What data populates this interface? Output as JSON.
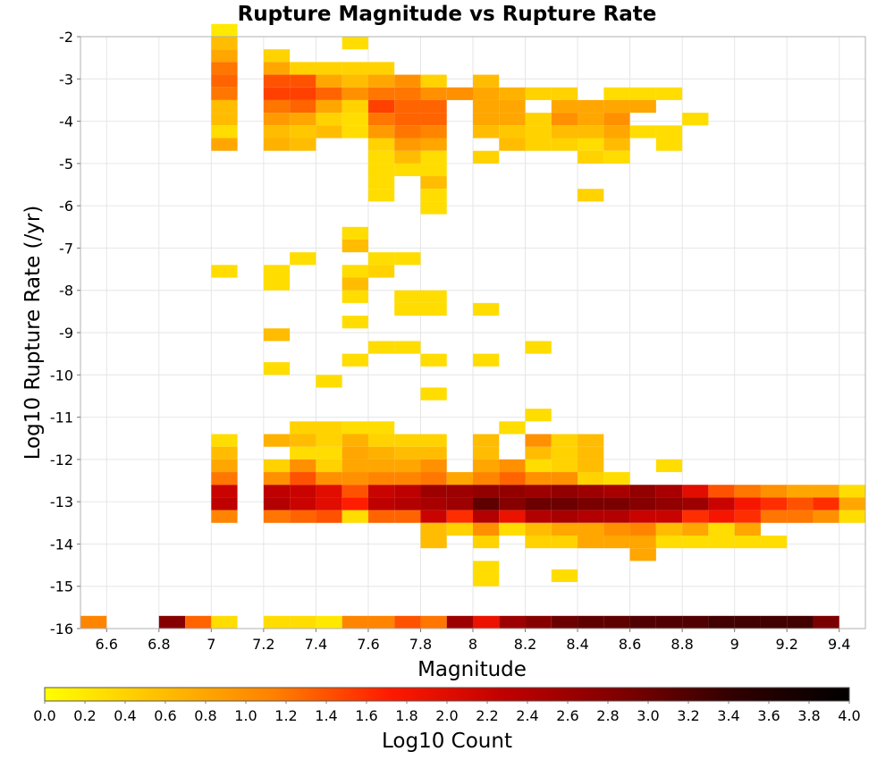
{
  "chart_data": {
    "type": "heatmap",
    "title": "Rupture Magnitude vs Rupture Rate",
    "xlabel": "Magnitude",
    "ylabel": "Log10 Rupture Rate (/yr)",
    "xlim": [
      6.5,
      9.5
    ],
    "ylim": [
      -16,
      -2
    ],
    "x_ticks": [
      "6.6",
      "6.8",
      "7",
      "7.2",
      "7.4",
      "7.6",
      "7.8",
      "8",
      "8.2",
      "8.4",
      "8.6",
      "8.8",
      "9",
      "9.2",
      "9.4"
    ],
    "y_ticks": [
      "-2",
      "-3",
      "-4",
      "-5",
      "-6",
      "-7",
      "-8",
      "-9",
      "-10",
      "-11",
      "-12",
      "-13",
      "-14",
      "-15",
      "-16"
    ],
    "grid": true,
    "cell_width": 0.1,
    "cell_height": 0.3,
    "colorbar": {
      "label": "Log10 Count",
      "range": [
        0,
        4
      ],
      "ticks": [
        "0.0",
        "0.2",
        "0.4",
        "0.6",
        "0.8",
        "1.0",
        "1.2",
        "1.4",
        "1.6",
        "1.8",
        "2.0",
        "2.2",
        "2.4",
        "2.6",
        "2.8",
        "3.0",
        "3.2",
        "3.4",
        "3.6",
        "3.8",
        "4.0"
      ],
      "colors": [
        "#ffff00",
        "#ffbf00",
        "#ff8000",
        "#ff1a00",
        "#c00000",
        "#800000",
        "#300000",
        "#000000"
      ],
      "placement": "bottom"
    },
    "cells": [
      [
        6.5,
        -16,
        1.1
      ],
      [
        6.8,
        -16,
        2.8
      ],
      [
        6.9,
        -16,
        1.3
      ],
      [
        7,
        -16,
        0.3
      ],
      [
        7.2,
        -16,
        0.3
      ],
      [
        7.3,
        -16,
        0.3
      ],
      [
        7.4,
        -16,
        0.2
      ],
      [
        7.5,
        -16,
        1.1
      ],
      [
        7.6,
        -16,
        1.1
      ],
      [
        7.7,
        -16,
        1.4
      ],
      [
        7.8,
        -16,
        1.2
      ],
      [
        7.9,
        -16,
        2.6
      ],
      [
        8,
        -16,
        1.9
      ],
      [
        8.1,
        -16,
        2.6
      ],
      [
        8.2,
        -16,
        2.8
      ],
      [
        8.3,
        -16,
        3.0
      ],
      [
        8.4,
        -16,
        3.1
      ],
      [
        8.5,
        -16,
        3.1
      ],
      [
        8.6,
        -16,
        3.2
      ],
      [
        8.7,
        -16,
        3.2
      ],
      [
        8.8,
        -16,
        3.2
      ],
      [
        8.9,
        -16,
        3.3
      ],
      [
        9,
        -16,
        3.3
      ],
      [
        9.1,
        -16,
        3.3
      ],
      [
        9.2,
        -16,
        3.3
      ],
      [
        9.3,
        -16,
        2.9
      ],
      [
        7,
        -2,
        0.2
      ],
      [
        7,
        -2.3,
        0.6
      ],
      [
        7,
        -2.6,
        0.8
      ],
      [
        7,
        -2.9,
        1.2
      ],
      [
        7,
        -3.2,
        1.3
      ],
      [
        7,
        -3.5,
        1.2
      ],
      [
        7,
        -3.8,
        0.6
      ],
      [
        7,
        -4.1,
        0.6
      ],
      [
        7,
        -4.4,
        0.3
      ],
      [
        7,
        -4.7,
        0.8
      ],
      [
        7.2,
        -2.6,
        0.4
      ],
      [
        7.2,
        -2.9,
        0.8
      ],
      [
        7.2,
        -3.2,
        1.4
      ],
      [
        7.2,
        -3.5,
        1.5
      ],
      [
        7.2,
        -3.8,
        1.2
      ],
      [
        7.2,
        -4.1,
        0.9
      ],
      [
        7.2,
        -4.4,
        0.6
      ],
      [
        7.2,
        -4.7,
        0.7
      ],
      [
        7.3,
        -2.9,
        0.4
      ],
      [
        7.3,
        -3.2,
        1.4
      ],
      [
        7.3,
        -3.5,
        1.5
      ],
      [
        7.3,
        -3.8,
        1.3
      ],
      [
        7.3,
        -4.1,
        0.8
      ],
      [
        7.3,
        -4.4,
        0.5
      ],
      [
        7.3,
        -4.7,
        0.6
      ],
      [
        7.4,
        -2.9,
        0.4
      ],
      [
        7.4,
        -3.2,
        0.8
      ],
      [
        7.4,
        -3.5,
        1.3
      ],
      [
        7.4,
        -3.8,
        0.8
      ],
      [
        7.4,
        -4.1,
        0.4
      ],
      [
        7.4,
        -4.4,
        0.6
      ],
      [
        7.5,
        -2.3,
        0.3
      ],
      [
        7.5,
        -2.9,
        0.4
      ],
      [
        7.5,
        -3.2,
        0.6
      ],
      [
        7.5,
        -3.5,
        1.0
      ],
      [
        7.5,
        -3.8,
        0.4
      ],
      [
        7.5,
        -4.1,
        0.3
      ],
      [
        7.5,
        -4.4,
        0.3
      ],
      [
        7.6,
        -2.9,
        0.4
      ],
      [
        7.6,
        -3.2,
        0.8
      ],
      [
        7.6,
        -3.5,
        1.2
      ],
      [
        7.6,
        -3.8,
        1.5
      ],
      [
        7.6,
        -4.1,
        1.2
      ],
      [
        7.6,
        -4.4,
        0.9
      ],
      [
        7.6,
        -4.7,
        0.4
      ],
      [
        7.6,
        -5,
        0.3
      ],
      [
        7.6,
        -5.3,
        0.3
      ],
      [
        7.6,
        -5.6,
        0.3
      ],
      [
        7.6,
        -5.9,
        0.3
      ],
      [
        7.7,
        -3.2,
        1.0
      ],
      [
        7.7,
        -3.5,
        1.2
      ],
      [
        7.7,
        -3.8,
        1.3
      ],
      [
        7.7,
        -4.1,
        1.3
      ],
      [
        7.7,
        -4.4,
        1.2
      ],
      [
        7.7,
        -4.7,
        0.9
      ],
      [
        7.7,
        -5,
        0.6
      ],
      [
        7.7,
        -5.3,
        0.3
      ],
      [
        7.8,
        -3.2,
        0.4
      ],
      [
        7.8,
        -3.5,
        1.0
      ],
      [
        7.8,
        -3.8,
        1.3
      ],
      [
        7.8,
        -4.1,
        1.3
      ],
      [
        7.8,
        -4.4,
        1.1
      ],
      [
        7.8,
        -4.7,
        0.8
      ],
      [
        7.8,
        -5,
        0.3
      ],
      [
        7.8,
        -5.3,
        0.3
      ],
      [
        7.8,
        -5.6,
        0.6
      ],
      [
        7.8,
        -5.9,
        0.3
      ],
      [
        7.8,
        -6.2,
        0.3
      ],
      [
        7.9,
        -3.5,
        1.0
      ],
      [
        8,
        -3.2,
        0.6
      ],
      [
        8,
        -3.5,
        0.8
      ],
      [
        8,
        -3.8,
        0.8
      ],
      [
        8,
        -4.1,
        0.8
      ],
      [
        8,
        -4.4,
        0.6
      ],
      [
        8,
        -5,
        0.4
      ],
      [
        8.1,
        -3.5,
        0.7
      ],
      [
        8.1,
        -3.8,
        0.8
      ],
      [
        8.1,
        -4.1,
        0.8
      ],
      [
        8.1,
        -4.4,
        0.5
      ],
      [
        8.1,
        -4.7,
        0.6
      ],
      [
        8.2,
        -3.5,
        0.4
      ],
      [
        8.2,
        -4.1,
        0.4
      ],
      [
        8.2,
        -4.4,
        0.4
      ],
      [
        8.2,
        -4.7,
        0.4
      ],
      [
        8.3,
        -3.5,
        0.4
      ],
      [
        8.3,
        -3.8,
        0.8
      ],
      [
        8.3,
        -4.1,
        1.0
      ],
      [
        8.3,
        -4.4,
        0.6
      ],
      [
        8.3,
        -4.7,
        0.4
      ],
      [
        8.4,
        -3.8,
        0.8
      ],
      [
        8.4,
        -4.1,
        0.8
      ],
      [
        8.4,
        -4.4,
        0.6
      ],
      [
        8.4,
        -4.7,
        0.3
      ],
      [
        8.4,
        -5,
        0.4
      ],
      [
        8.4,
        -5.9,
        0.4
      ],
      [
        8.5,
        -3.5,
        0.3
      ],
      [
        8.5,
        -3.8,
        0.8
      ],
      [
        8.5,
        -4.1,
        1.0
      ],
      [
        8.5,
        -4.4,
        0.8
      ],
      [
        8.5,
        -4.7,
        0.6
      ],
      [
        8.5,
        -5,
        0.3
      ],
      [
        8.6,
        -3.5,
        0.3
      ],
      [
        8.6,
        -3.8,
        0.8
      ],
      [
        8.6,
        -4.4,
        0.3
      ],
      [
        8.7,
        -3.5,
        0.3
      ],
      [
        8.7,
        -4.4,
        0.3
      ],
      [
        8.7,
        -4.7,
        0.3
      ],
      [
        8.8,
        -4.1,
        0.3
      ],
      [
        7,
        -7.7,
        0.3
      ],
      [
        7.2,
        -7.7,
        0.3
      ],
      [
        7.2,
        -8,
        0.3
      ],
      [
        7.2,
        -9.2,
        0.6
      ],
      [
        7.2,
        -10,
        0.3
      ],
      [
        7.3,
        -7.4,
        0.3
      ],
      [
        7.4,
        -10.3,
        0.3
      ],
      [
        7.5,
        -6.8,
        0.3
      ],
      [
        7.5,
        -7.1,
        0.6
      ],
      [
        7.5,
        -7.7,
        0.3
      ],
      [
        7.5,
        -8,
        0.6
      ],
      [
        7.5,
        -8.3,
        0.3
      ],
      [
        7.5,
        -8.9,
        0.3
      ],
      [
        7.5,
        -9.8,
        0.3
      ],
      [
        7.6,
        -7.4,
        0.3
      ],
      [
        7.6,
        -7.7,
        0.4
      ],
      [
        7.6,
        -9.5,
        0.3
      ],
      [
        7.7,
        -7.4,
        0.3
      ],
      [
        7.7,
        -8.3,
        0.3
      ],
      [
        7.7,
        -8.6,
        0.3
      ],
      [
        7.7,
        -9.5,
        0.3
      ],
      [
        7.8,
        -8.3,
        0.3
      ],
      [
        7.8,
        -8.6,
        0.3
      ],
      [
        7.8,
        -9.8,
        0.3
      ],
      [
        7.8,
        -10.6,
        0.3
      ],
      [
        8,
        -8.6,
        0.3
      ],
      [
        8,
        -9.8,
        0.3
      ],
      [
        8.2,
        -9.5,
        0.3
      ],
      [
        8.2,
        -11.1,
        0.3
      ],
      [
        8.1,
        -11.4,
        0.3
      ],
      [
        7,
        -11.7,
        0.3
      ],
      [
        7,
        -12,
        0.6
      ],
      [
        7,
        -12.3,
        0.8
      ],
      [
        7,
        -12.6,
        1.2
      ],
      [
        7,
        -12.9,
        2.2
      ],
      [
        7,
        -13.2,
        2.3
      ],
      [
        7,
        -13.5,
        1.1
      ],
      [
        7.2,
        -11.7,
        0.7
      ],
      [
        7.2,
        -12.3,
        0.4
      ],
      [
        7.2,
        -12.6,
        1.0
      ],
      [
        7.2,
        -12.9,
        2.3
      ],
      [
        7.2,
        -13.2,
        2.4
      ],
      [
        7.2,
        -13.5,
        1.2
      ],
      [
        7.3,
        -11.4,
        0.4
      ],
      [
        7.3,
        -11.7,
        0.6
      ],
      [
        7.3,
        -12,
        0.3
      ],
      [
        7.3,
        -12.3,
        1.0
      ],
      [
        7.3,
        -12.6,
        1.4
      ],
      [
        7.3,
        -12.9,
        2.2
      ],
      [
        7.3,
        -13.2,
        2.2
      ],
      [
        7.3,
        -13.5,
        1.3
      ],
      [
        7.4,
        -11.4,
        0.4
      ],
      [
        7.4,
        -11.7,
        0.4
      ],
      [
        7.4,
        -12,
        0.3
      ],
      [
        7.4,
        -12.3,
        0.4
      ],
      [
        7.4,
        -12.6,
        1.0
      ],
      [
        7.4,
        -12.9,
        2.0
      ],
      [
        7.4,
        -13.2,
        2.0
      ],
      [
        7.4,
        -13.5,
        1.4
      ],
      [
        7.5,
        -11.4,
        0.3
      ],
      [
        7.5,
        -11.7,
        0.7
      ],
      [
        7.5,
        -12,
        0.8
      ],
      [
        7.5,
        -12.3,
        0.8
      ],
      [
        7.5,
        -12.6,
        1.0
      ],
      [
        7.5,
        -12.9,
        1.4
      ],
      [
        7.5,
        -13.2,
        1.7
      ],
      [
        7.5,
        -13.5,
        0.3
      ],
      [
        7.6,
        -11.4,
        0.3
      ],
      [
        7.6,
        -11.7,
        0.4
      ],
      [
        7.6,
        -12,
        0.7
      ],
      [
        7.6,
        -12.3,
        0.8
      ],
      [
        7.6,
        -12.6,
        1.1
      ],
      [
        7.6,
        -12.9,
        2.2
      ],
      [
        7.6,
        -13.2,
        2.3
      ],
      [
        7.6,
        -13.5,
        1.3
      ],
      [
        7.7,
        -11.7,
        0.4
      ],
      [
        7.7,
        -12,
        0.6
      ],
      [
        7.7,
        -12.3,
        0.8
      ],
      [
        7.7,
        -12.6,
        1.1
      ],
      [
        7.7,
        -12.9,
        2.3
      ],
      [
        7.7,
        -13.2,
        2.4
      ],
      [
        7.7,
        -13.5,
        1.3
      ],
      [
        7.8,
        -11.7,
        0.4
      ],
      [
        7.8,
        -12,
        0.6
      ],
      [
        7.8,
        -12.3,
        1.0
      ],
      [
        7.8,
        -12.6,
        1.2
      ],
      [
        7.8,
        -12.9,
        2.6
      ],
      [
        7.8,
        -13.2,
        2.5
      ],
      [
        7.8,
        -13.5,
        2.2
      ],
      [
        7.8,
        -13.8,
        0.6
      ],
      [
        7.8,
        -14.1,
        0.6
      ],
      [
        7.9,
        -12.6,
        0.8
      ],
      [
        7.9,
        -12.9,
        2.6
      ],
      [
        7.9,
        -13.2,
        2.6
      ],
      [
        7.9,
        -13.5,
        1.6
      ],
      [
        7.9,
        -13.8,
        0.4
      ],
      [
        8,
        -11.7,
        0.6
      ],
      [
        8,
        -12,
        0.6
      ],
      [
        8,
        -12.3,
        0.8
      ],
      [
        8,
        -12.6,
        1.1
      ],
      [
        8,
        -12.9,
        2.7
      ],
      [
        8,
        -13.2,
        3.1
      ],
      [
        8,
        -13.5,
        2.4
      ],
      [
        8,
        -13.8,
        1.0
      ],
      [
        8,
        -14.1,
        0.4
      ],
      [
        8,
        -14.7,
        0.3
      ],
      [
        8,
        -15,
        0.3
      ],
      [
        8.1,
        -12.3,
        1.0
      ],
      [
        8.1,
        -12.6,
        1.3
      ],
      [
        8.1,
        -12.9,
        2.7
      ],
      [
        8.1,
        -13.2,
        2.8
      ],
      [
        8.1,
        -13.5,
        1.9
      ],
      [
        8.1,
        -13.8,
        0.3
      ],
      [
        8.2,
        -11.7,
        1.0
      ],
      [
        8.2,
        -12,
        0.6
      ],
      [
        8.2,
        -12.3,
        0.3
      ],
      [
        8.2,
        -12.6,
        1.0
      ],
      [
        8.2,
        -12.9,
        2.6
      ],
      [
        8.2,
        -13.2,
        3.0
      ],
      [
        8.2,
        -13.5,
        2.4
      ],
      [
        8.2,
        -13.8,
        0.6
      ],
      [
        8.2,
        -14.1,
        0.4
      ],
      [
        8.3,
        -11.7,
        0.4
      ],
      [
        8.3,
        -12,
        0.4
      ],
      [
        8.3,
        -12.3,
        0.4
      ],
      [
        8.3,
        -12.6,
        1.0
      ],
      [
        8.3,
        -12.9,
        2.7
      ],
      [
        8.3,
        -13.2,
        3.0
      ],
      [
        8.3,
        -13.5,
        2.5
      ],
      [
        8.3,
        -13.8,
        0.8
      ],
      [
        8.3,
        -14.1,
        0.4
      ],
      [
        8.3,
        -14.9,
        0.3
      ],
      [
        8.4,
        -11.7,
        0.6
      ],
      [
        8.4,
        -12,
        0.6
      ],
      [
        8.4,
        -12.3,
        0.6
      ],
      [
        8.4,
        -12.6,
        0.4
      ],
      [
        8.4,
        -12.9,
        2.6
      ],
      [
        8.4,
        -13.2,
        2.9
      ],
      [
        8.4,
        -13.5,
        2.4
      ],
      [
        8.4,
        -13.8,
        0.8
      ],
      [
        8.4,
        -14.1,
        0.8
      ],
      [
        8.5,
        -12.6,
        0.3
      ],
      [
        8.5,
        -12.9,
        2.5
      ],
      [
        8.5,
        -13.2,
        2.9
      ],
      [
        8.5,
        -13.5,
        2.4
      ],
      [
        8.5,
        -13.8,
        1.0
      ],
      [
        8.5,
        -14.1,
        0.8
      ],
      [
        8.6,
        -12.9,
        2.7
      ],
      [
        8.6,
        -13.2,
        2.8
      ],
      [
        8.6,
        -13.5,
        2.2
      ],
      [
        8.6,
        -13.8,
        1.1
      ],
      [
        8.6,
        -14.1,
        0.8
      ],
      [
        8.6,
        -14.4,
        0.8
      ],
      [
        8.7,
        -12.3,
        0.3
      ],
      [
        8.7,
        -12.9,
        2.5
      ],
      [
        8.7,
        -13.2,
        2.7
      ],
      [
        8.7,
        -13.5,
        2.2
      ],
      [
        8.7,
        -13.8,
        0.6
      ],
      [
        8.7,
        -14.1,
        0.3
      ],
      [
        8.8,
        -12.9,
        2.0
      ],
      [
        8.8,
        -13.2,
        2.6
      ],
      [
        8.8,
        -13.5,
        1.6
      ],
      [
        8.8,
        -13.8,
        0.8
      ],
      [
        8.8,
        -14.1,
        0.3
      ],
      [
        8.9,
        -12.9,
        1.4
      ],
      [
        8.9,
        -13.2,
        2.2
      ],
      [
        8.9,
        -13.5,
        1.8
      ],
      [
        8.9,
        -13.8,
        0.3
      ],
      [
        8.9,
        -14.1,
        0.3
      ],
      [
        9,
        -12.9,
        1.2
      ],
      [
        9,
        -13.2,
        1.8
      ],
      [
        9,
        -13.5,
        1.6
      ],
      [
        9,
        -13.8,
        0.8
      ],
      [
        9,
        -14.1,
        0.3
      ],
      [
        9.1,
        -12.9,
        1.0
      ],
      [
        9.1,
        -13.2,
        1.6
      ],
      [
        9.1,
        -13.5,
        1.2
      ],
      [
        9.1,
        -14.1,
        0.3
      ],
      [
        9.2,
        -12.9,
        0.8
      ],
      [
        9.2,
        -13.2,
        1.4
      ],
      [
        9.2,
        -13.5,
        1.2
      ],
      [
        9.3,
        -12.9,
        0.8
      ],
      [
        9.3,
        -13.2,
        1.6
      ],
      [
        9.3,
        -13.5,
        1.0
      ],
      [
        9.4,
        -12.9,
        0.3
      ],
      [
        9.4,
        -13.2,
        0.8
      ],
      [
        9.4,
        -13.5,
        0.3
      ]
    ]
  }
}
